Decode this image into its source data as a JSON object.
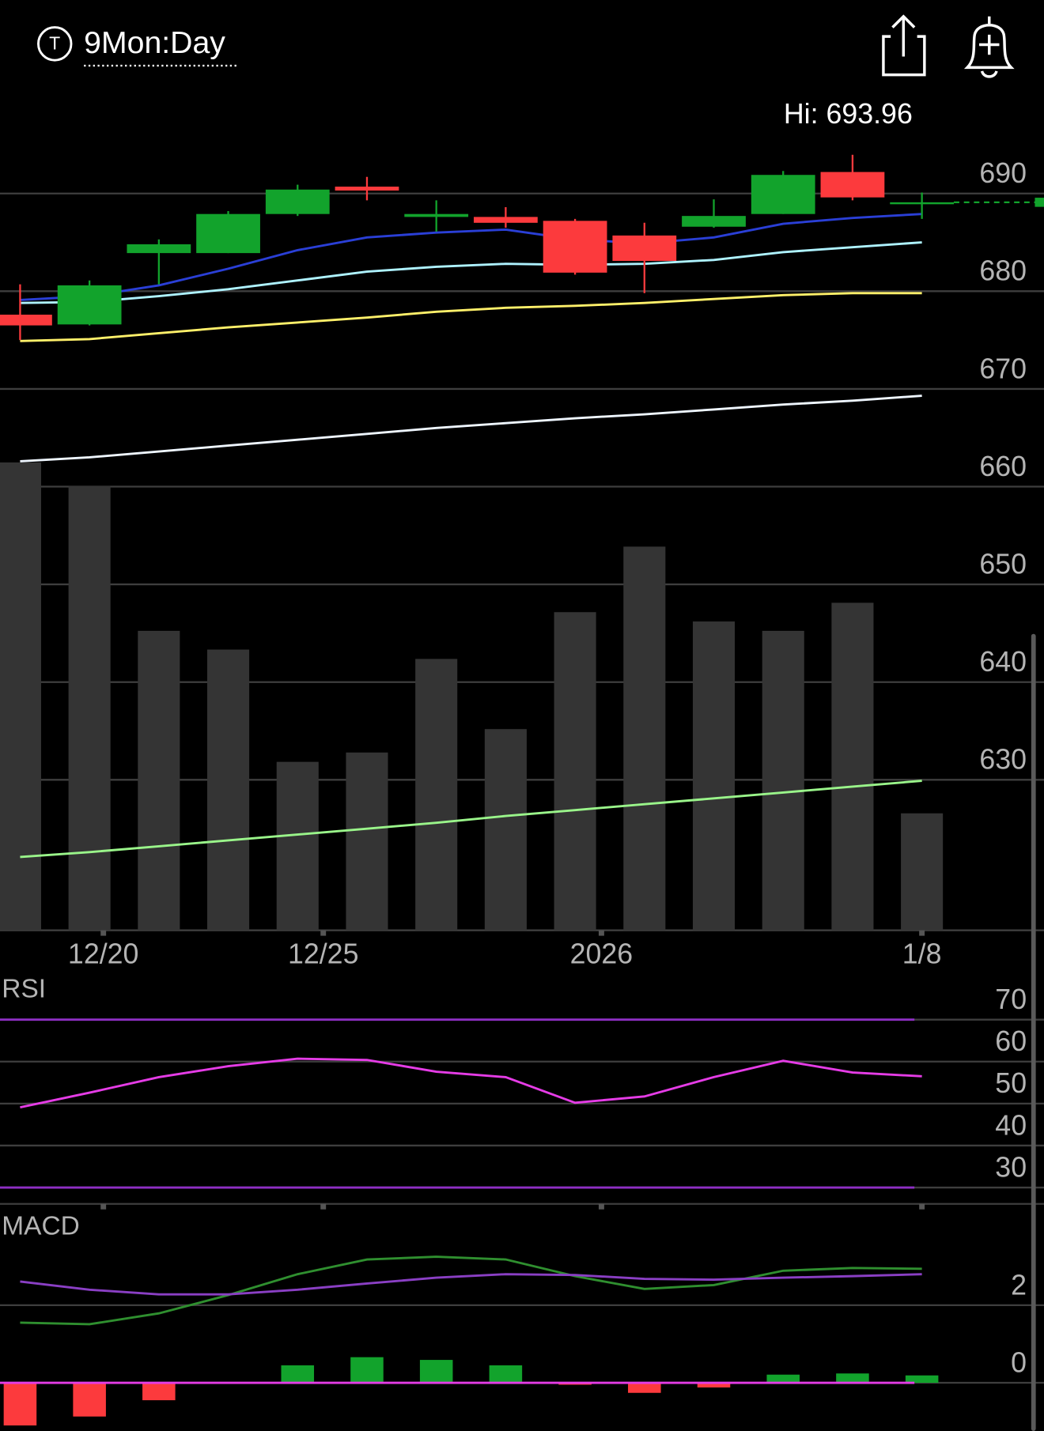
{
  "header": {
    "icon_letter": "T",
    "title": "9Mon:Day"
  },
  "chart_data": [
    {
      "type": "candlestick",
      "annotation": "Hi: 693.96",
      "x": [
        0,
        1,
        2,
        3,
        4,
        5,
        6,
        7,
        8,
        9,
        10,
        11,
        12,
        13
      ],
      "xlim": [
        -0.29,
        14.76
      ],
      "xticks": [
        {
          "value": 1.2,
          "label": "12/20"
        },
        {
          "value": 4.37,
          "label": "12/25"
        },
        {
          "value": 8.38,
          "label": "2026"
        },
        {
          "value": 13,
          "label": "1/8"
        }
      ],
      "open": [
        677.6,
        676.6,
        683.9,
        683.9,
        687.9,
        690.7,
        687.6,
        687.6,
        687.2,
        685.7,
        686.6,
        687.9,
        692.2,
        688.9
      ],
      "high": [
        680.7,
        681.1,
        685.3,
        688.2,
        690.9,
        691.7,
        689.3,
        688.6,
        687.4,
        687.0,
        689.4,
        692.3,
        693.96,
        690.1
      ],
      "low": [
        675.0,
        676.5,
        680.7,
        683.9,
        687.7,
        689.3,
        686.1,
        686.5,
        681.7,
        679.8,
        686.5,
        687.9,
        689.3,
        687.4
      ],
      "close": [
        676.5,
        680.6,
        684.8,
        687.9,
        690.4,
        690.3,
        687.9,
        687.0,
        681.9,
        683.1,
        687.7,
        691.9,
        689.6,
        689.1
      ],
      "up_color": "#12a32c",
      "down_color": "#fc3a3d",
      "ylim": [
        614.6,
        695.8
      ],
      "yticks": [
        630,
        640,
        650,
        660,
        670,
        680,
        690
      ],
      "grid": true,
      "moving_averages": [
        {
          "color": "#2a3fd6",
          "values": [
            679.1,
            679.5,
            680.6,
            682.3,
            684.2,
            685.5,
            686.0,
            686.3,
            685.3,
            684.9,
            685.5,
            686.9,
            687.5,
            687.9
          ]
        },
        {
          "color": "#aef2ff",
          "values": [
            678.8,
            678.9,
            679.5,
            680.2,
            681.1,
            682.0,
            682.5,
            682.8,
            682.7,
            682.8,
            683.2,
            684.0,
            684.5,
            685.0
          ]
        },
        {
          "color": "#fff06a",
          "values": [
            674.9,
            675.1,
            675.7,
            676.3,
            676.8,
            677.3,
            677.9,
            678.3,
            678.5,
            678.8,
            679.2,
            679.6,
            679.8,
            679.8
          ]
        },
        {
          "color": "#eef6ff",
          "values": [
            662.6,
            663.0,
            663.6,
            664.2,
            664.8,
            665.4,
            666.0,
            666.5,
            667.0,
            667.4,
            667.9,
            668.4,
            668.8,
            669.3
          ]
        },
        {
          "color": "#9af58a",
          "values": [
            622.1,
            622.6,
            623.2,
            623.8,
            624.4,
            625.0,
            625.6,
            626.3,
            626.9,
            627.5,
            628.1,
            628.7,
            629.3,
            629.9
          ]
        }
      ],
      "volume": {
        "color": "#343434",
        "vlim": [
          0,
          100
        ],
        "values": [
          100,
          95,
          64,
          60,
          36,
          38,
          58,
          43,
          68,
          82,
          66,
          64,
          70,
          25
        ]
      }
    },
    {
      "type": "line",
      "title": "RSI",
      "x": [
        0,
        1,
        2,
        3,
        4,
        5,
        6,
        7,
        8,
        9,
        10,
        11,
        12,
        13
      ],
      "xlim": [
        -0.29,
        14.76
      ],
      "values": [
        49.1,
        52.6,
        56.3,
        58.9,
        60.7,
        60.4,
        57.6,
        56.3,
        50.2,
        51.7,
        56.3,
        60.2,
        57.4,
        56.5
      ],
      "color": "#e53ce6",
      "ylim": [
        26.1,
        73.9
      ],
      "yticks": [
        30,
        40,
        50,
        60,
        70
      ],
      "grid": true,
      "level_lines": [
        70,
        30
      ],
      "level_color": "#8e2fc4"
    },
    {
      "type": "macd",
      "title": "MACD",
      "x": [
        0,
        1,
        2,
        3,
        4,
        5,
        6,
        7,
        8,
        9,
        10,
        11,
        12,
        13
      ],
      "xlim": [
        -0.29,
        14.76
      ],
      "macd": {
        "color": "#2f8f2f",
        "values": [
          1.55,
          1.51,
          1.79,
          2.26,
          2.8,
          3.18,
          3.25,
          3.18,
          2.75,
          2.42,
          2.52,
          2.89,
          2.96,
          2.94
        ]
      },
      "signal": {
        "color": "#8a3fc4",
        "values": [
          2.61,
          2.4,
          2.28,
          2.28,
          2.4,
          2.56,
          2.71,
          2.8,
          2.78,
          2.68,
          2.66,
          2.71,
          2.75,
          2.8
        ]
      },
      "histogram": {
        "up_color": "#12a32c",
        "down_color": "#fc3a3d",
        "values": [
          -1.1,
          -0.87,
          -0.45,
          0,
          0.45,
          0.66,
          0.59,
          0.45,
          -0.05,
          -0.26,
          -0.12,
          0.21,
          0.24,
          0.19
        ]
      },
      "zero_line_color": "#e53ce6",
      "ylim": [
        -1.22,
        4.26
      ],
      "yticks": [
        0,
        2
      ],
      "grid": true
    }
  ]
}
